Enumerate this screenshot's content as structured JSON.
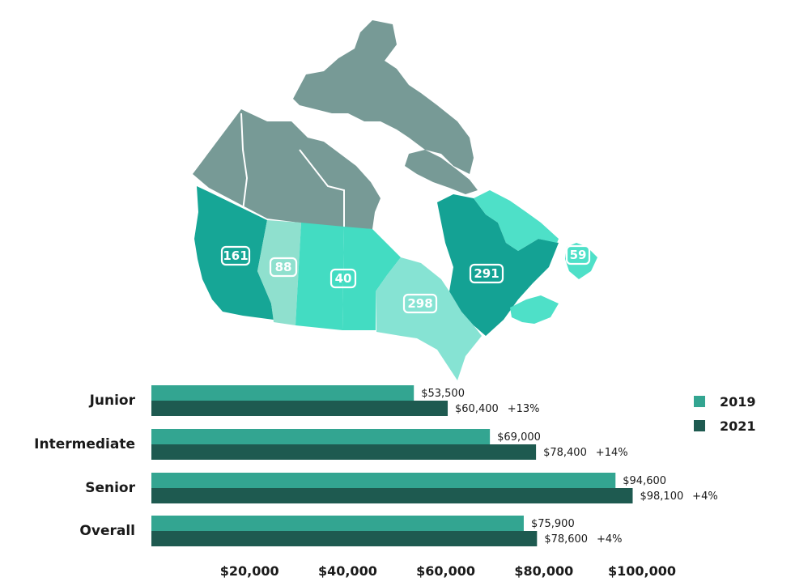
{
  "map": {
    "regions": [
      {
        "name": "British Columbia",
        "value": "161",
        "color": "#16a696"
      },
      {
        "name": "Alberta",
        "value": "88",
        "color": "#8fe0ce"
      },
      {
        "name": "Saskatchewan and Manitoba",
        "value": "40",
        "color": "#43dcc2"
      },
      {
        "name": "Ontario",
        "value": "298",
        "color": "#86e3d3"
      },
      {
        "name": "Quebec",
        "value": "291",
        "color": "#14a294"
      },
      {
        "name": "Atlantic",
        "value": "59",
        "color": "#4ee0c8"
      }
    ],
    "north_color": "#779a96"
  },
  "chart_data": {
    "type": "bar",
    "orientation": "horizontal",
    "categories": [
      "Junior",
      "Intermediate",
      "Senior",
      "Overall"
    ],
    "series": [
      {
        "name": "2019",
        "color": "#33a591",
        "values": [
          53500,
          69000,
          94600,
          75900
        ],
        "labels": [
          "$53,500",
          "$69,000",
          "$94,600",
          "$75,900"
        ]
      },
      {
        "name": "2021",
        "color": "#1e5a50",
        "values": [
          60400,
          78400,
          98100,
          78600
        ],
        "labels": [
          "$60,400",
          "$78,400",
          "$98,100",
          "$78,600"
        ]
      }
    ],
    "change_labels": [
      "+13%",
      "+14%",
      "+4%",
      "+4%"
    ],
    "xlim": [
      0,
      106000
    ],
    "xticks": [
      20000,
      40000,
      60000,
      80000,
      100000
    ],
    "xtick_labels": [
      "$20,000",
      "$40,000",
      "$60,000",
      "$80,000",
      "$100,000"
    ],
    "grid": false,
    "legend_position": "right"
  }
}
